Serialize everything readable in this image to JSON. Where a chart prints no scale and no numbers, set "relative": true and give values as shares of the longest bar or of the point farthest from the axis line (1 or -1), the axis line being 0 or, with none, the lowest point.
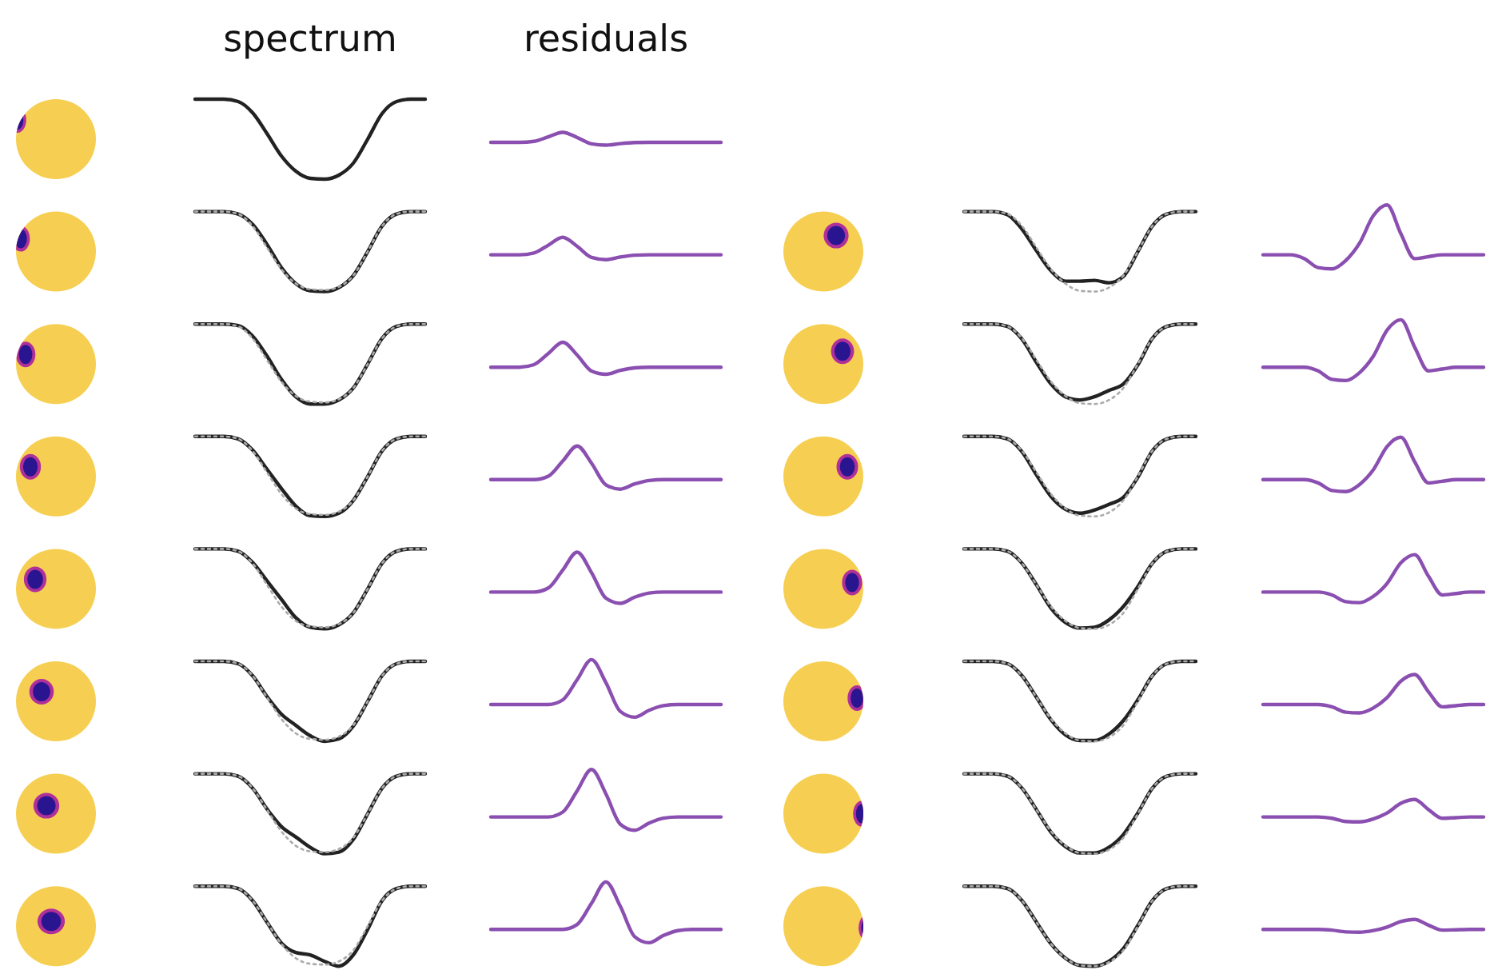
{
  "chart_data": [
    {
      "type": "line",
      "relative": true,
      "title": "spectrum",
      "categories": [
        null,
        null,
        null,
        null,
        null,
        null,
        null,
        null,
        null,
        null,
        null,
        null,
        null,
        null,
        null,
        null,
        null
      ],
      "series": [
        {
          "color": "#222222",
          "values": [
            1,
            1,
            1,
            0.97,
            0.83,
            0.57,
            0.29,
            0.1,
            0.01,
            0,
            0.05,
            0.2,
            0.5,
            0.82,
            0.97,
            1,
            1
          ]
        }
      ]
    },
    {
      "type": "line",
      "relative": true,
      "title": "residuals",
      "categories": [
        null,
        null,
        null,
        null,
        null,
        null,
        null,
        null,
        null,
        null,
        null,
        null,
        null,
        null,
        null,
        null,
        null
      ],
      "series": [
        {
          "color": "#8a4fb0",
          "values": [
            0.22,
            0.22,
            0.22,
            0.3,
            0.65,
            1,
            0.6,
            0.1,
            0,
            0.12,
            0.2,
            0.22,
            0.22,
            0.22,
            0.22,
            0.22,
            0.22
          ]
        }
      ]
    },
    {
      "type": "line",
      "relative": true,
      "categories": [
        null,
        null,
        null,
        null,
        null,
        null,
        null,
        null,
        null,
        null,
        null,
        null,
        null,
        null,
        null,
        null,
        null
      ],
      "series": [
        {
          "color": "#222222",
          "values": [
            1,
            1,
            1,
            0.97,
            0.84,
            0.59,
            0.3,
            0.1,
            0.01,
            0,
            0.05,
            0.2,
            0.5,
            0.82,
            0.97,
            1,
            1
          ]
        },
        {
          "color": "#aaaaaa",
          "line_style": "dotted",
          "values": [
            1,
            1,
            1,
            0.97,
            0.82,
            0.55,
            0.28,
            0.1,
            0.03,
            0.02,
            0.06,
            0.2,
            0.5,
            0.82,
            0.97,
            1,
            1
          ]
        }
      ]
    },
    {
      "type": "line",
      "relative": true,
      "categories": [
        null,
        null,
        null,
        null,
        null,
        null,
        null,
        null,
        null,
        null,
        null,
        null,
        null,
        null,
        null,
        null,
        null
      ],
      "series": [
        {
          "color": "#8a4fb0",
          "values": [
            0.22,
            0.22,
            0.22,
            0.3,
            0.65,
            1,
            0.6,
            0.1,
            0,
            0.12,
            0.2,
            0.22,
            0.22,
            0.22,
            0.22,
            0.22,
            0.22
          ]
        }
      ]
    },
    {
      "type": "line",
      "relative": true,
      "categories": [
        null,
        null,
        null,
        null,
        null,
        null,
        null,
        null,
        null,
        null,
        null,
        null,
        null,
        null,
        null,
        null,
        null
      ],
      "series": [
        {
          "color": "#222222",
          "values": [
            1,
            1,
            1,
            0.96,
            0.78,
            0.51,
            0.26,
            0.13,
            0.13,
            0.14,
            0.11,
            0.19,
            0.5,
            0.82,
            0.97,
            1,
            1
          ]
        },
        {
          "color": "#aaaaaa",
          "line_style": "dotted",
          "values": [
            1,
            1,
            1,
            0.97,
            0.82,
            0.55,
            0.28,
            0.1,
            0.01,
            0,
            0.05,
            0.2,
            0.5,
            0.82,
            0.97,
            1,
            1
          ]
        }
      ]
    },
    {
      "type": "line",
      "relative": true,
      "categories": [
        null,
        null,
        null,
        null,
        null,
        null,
        null,
        null,
        null,
        null,
        null,
        null,
        null,
        null,
        null,
        null,
        null
      ],
      "series": [
        {
          "color": "#8a4fb0",
          "values": [
            0.22,
            0.22,
            0.22,
            0.16,
            0.02,
            0,
            0.13,
            0.4,
            0.83,
            1,
            0.55,
            0.16,
            0.19,
            0.22,
            0.22,
            0.22,
            0.22
          ]
        }
      ]
    },
    {
      "type": "line",
      "relative": true,
      "categories": [
        null,
        null,
        null,
        null,
        null,
        null,
        null,
        null,
        null,
        null,
        null,
        null,
        null,
        null,
        null,
        null,
        null
      ],
      "series": [
        {
          "color": "#222222",
          "values": [
            1,
            1,
            1,
            0.98,
            0.85,
            0.6,
            0.31,
            0.09,
            0,
            0,
            0.05,
            0.2,
            0.5,
            0.82,
            0.97,
            1,
            1
          ]
        },
        {
          "color": "#aaaaaa",
          "line_style": "dotted",
          "values": [
            1,
            1,
            1,
            0.97,
            0.82,
            0.55,
            0.28,
            0.1,
            0.03,
            0.02,
            0.06,
            0.2,
            0.5,
            0.82,
            0.97,
            1,
            1
          ]
        }
      ]
    },
    {
      "type": "line",
      "relative": true,
      "categories": [
        null,
        null,
        null,
        null,
        null,
        null,
        null,
        null,
        null,
        null,
        null,
        null,
        null,
        null,
        null,
        null,
        null
      ],
      "series": [
        {
          "color": "#8a4fb0",
          "values": [
            0.22,
            0.22,
            0.22,
            0.3,
            0.65,
            1,
            0.6,
            0.1,
            0,
            0.12,
            0.2,
            0.22,
            0.22,
            0.22,
            0.22,
            0.22,
            0.22
          ]
        }
      ]
    },
    {
      "type": "line",
      "relative": true,
      "categories": [
        null,
        null,
        null,
        null,
        null,
        null,
        null,
        null,
        null,
        null,
        null,
        null,
        null,
        null,
        null,
        null,
        null
      ],
      "series": [
        {
          "color": "#222222",
          "values": [
            1,
            1,
            1,
            0.97,
            0.81,
            0.52,
            0.25,
            0.09,
            0.05,
            0.09,
            0.17,
            0.25,
            0.49,
            0.82,
            0.97,
            1,
            1
          ]
        },
        {
          "color": "#aaaaaa",
          "line_style": "dotted",
          "values": [
            1,
            1,
            1,
            0.97,
            0.82,
            0.55,
            0.28,
            0.1,
            0.01,
            0,
            0.05,
            0.2,
            0.5,
            0.82,
            0.97,
            1,
            1
          ]
        }
      ]
    },
    {
      "type": "line",
      "relative": true,
      "categories": [
        null,
        null,
        null,
        null,
        null,
        null,
        null,
        null,
        null,
        null,
        null,
        null,
        null,
        null,
        null,
        null,
        null
      ],
      "series": [
        {
          "color": "#8a4fb0",
          "values": [
            0.22,
            0.22,
            0.22,
            0.22,
            0.16,
            0.02,
            0,
            0.13,
            0.4,
            0.83,
            1,
            0.55,
            0.16,
            0.19,
            0.22,
            0.22,
            0.22
          ]
        }
      ]
    },
    {
      "type": "line",
      "relative": true,
      "categories": [
        null,
        null,
        null,
        null,
        null,
        null,
        null,
        null,
        null,
        null,
        null,
        null,
        null,
        null,
        null,
        null,
        null
      ],
      "series": [
        {
          "color": "#222222",
          "values": [
            1,
            1,
            1,
            0.97,
            0.83,
            0.59,
            0.35,
            0.13,
            0.01,
            0,
            0.04,
            0.2,
            0.5,
            0.82,
            0.97,
            1,
            1
          ]
        },
        {
          "color": "#aaaaaa",
          "line_style": "dotted",
          "values": [
            1,
            1,
            1,
            0.97,
            0.82,
            0.55,
            0.28,
            0.1,
            0.03,
            0.02,
            0.06,
            0.2,
            0.5,
            0.82,
            0.97,
            1,
            1
          ]
        }
      ]
    },
    {
      "type": "line",
      "relative": true,
      "categories": [
        null,
        null,
        null,
        null,
        null,
        null,
        null,
        null,
        null,
        null,
        null,
        null,
        null,
        null,
        null,
        null,
        null
      ],
      "series": [
        {
          "color": "#8a4fb0",
          "values": [
            0.22,
            0.22,
            0.22,
            0.22,
            0.3,
            0.65,
            1,
            0.6,
            0.1,
            0,
            0.12,
            0.2,
            0.22,
            0.22,
            0.22,
            0.22,
            0.22
          ]
        }
      ]
    },
    {
      "type": "line",
      "relative": true,
      "categories": [
        null,
        null,
        null,
        null,
        null,
        null,
        null,
        null,
        null,
        null,
        null,
        null,
        null,
        null,
        null,
        null,
        null
      ],
      "series": [
        {
          "color": "#222222",
          "values": [
            1,
            1,
            1,
            0.97,
            0.81,
            0.52,
            0.25,
            0.09,
            0.04,
            0.08,
            0.15,
            0.24,
            0.49,
            0.82,
            0.97,
            1,
            1
          ]
        },
        {
          "color": "#aaaaaa",
          "line_style": "dotted",
          "values": [
            1,
            1,
            1,
            0.97,
            0.82,
            0.55,
            0.28,
            0.1,
            0.01,
            0,
            0.05,
            0.2,
            0.5,
            0.82,
            0.97,
            1,
            1
          ]
        }
      ]
    },
    {
      "type": "line",
      "relative": true,
      "categories": [
        null,
        null,
        null,
        null,
        null,
        null,
        null,
        null,
        null,
        null,
        null,
        null,
        null,
        null,
        null,
        null,
        null
      ],
      "series": [
        {
          "color": "#8a4fb0",
          "values": [
            0.22,
            0.22,
            0.22,
            0.22,
            0.16,
            0.02,
            0,
            0.13,
            0.4,
            0.83,
            1,
            0.55,
            0.16,
            0.19,
            0.22,
            0.22,
            0.22
          ]
        }
      ]
    },
    {
      "type": "line",
      "relative": true,
      "categories": [
        null,
        null,
        null,
        null,
        null,
        null,
        null,
        null,
        null,
        null,
        null,
        null,
        null,
        null,
        null,
        null,
        null
      ],
      "series": [
        {
          "color": "#222222",
          "values": [
            1,
            1,
            1,
            0.97,
            0.83,
            0.6,
            0.37,
            0.14,
            0.02,
            0,
            0.05,
            0.2,
            0.5,
            0.82,
            0.97,
            1,
            1
          ]
        },
        {
          "color": "#aaaaaa",
          "line_style": "dotted",
          "values": [
            1,
            1,
            1,
            0.97,
            0.82,
            0.55,
            0.28,
            0.1,
            0.03,
            0.02,
            0.06,
            0.2,
            0.5,
            0.82,
            0.97,
            1,
            1
          ]
        }
      ]
    },
    {
      "type": "line",
      "relative": true,
      "categories": [
        null,
        null,
        null,
        null,
        null,
        null,
        null,
        null,
        null,
        null,
        null,
        null,
        null,
        null,
        null,
        null,
        null
      ],
      "series": [
        {
          "color": "#8a4fb0",
          "values": [
            0.22,
            0.22,
            0.22,
            0.22,
            0.3,
            0.65,
            1,
            0.6,
            0.1,
            0,
            0.12,
            0.2,
            0.22,
            0.22,
            0.22,
            0.22,
            0.22
          ]
        }
      ]
    },
    {
      "type": "line",
      "relative": true,
      "categories": [
        null,
        null,
        null,
        null,
        null,
        null,
        null,
        null,
        null,
        null,
        null,
        null,
        null,
        null,
        null,
        null,
        null
      ],
      "series": [
        {
          "color": "#222222",
          "values": [
            1,
            1,
            1,
            0.97,
            0.82,
            0.55,
            0.26,
            0.08,
            0.01,
            0.02,
            0.11,
            0.28,
            0.53,
            0.82,
            0.97,
            1,
            1
          ]
        },
        {
          "color": "#aaaaaa",
          "line_style": "dotted",
          "values": [
            1,
            1,
            1,
            0.97,
            0.82,
            0.55,
            0.28,
            0.1,
            0.01,
            0,
            0.05,
            0.2,
            0.5,
            0.82,
            0.97,
            1,
            1
          ]
        }
      ]
    },
    {
      "type": "line",
      "relative": true,
      "categories": [
        null,
        null,
        null,
        null,
        null,
        null,
        null,
        null,
        null,
        null,
        null,
        null,
        null,
        null,
        null,
        null,
        null
      ],
      "series": [
        {
          "color": "#8a4fb0",
          "values": [
            0.22,
            0.22,
            0.22,
            0.22,
            0.22,
            0.16,
            0.02,
            0,
            0.13,
            0.4,
            0.83,
            1,
            0.55,
            0.16,
            0.19,
            0.22,
            0.22
          ]
        }
      ]
    },
    {
      "type": "line",
      "relative": true,
      "categories": [
        null,
        null,
        null,
        null,
        null,
        null,
        null,
        null,
        null,
        null,
        null,
        null,
        null,
        null,
        null,
        null,
        null
      ],
      "series": [
        {
          "color": "#222222",
          "values": [
            1,
            1,
            1,
            0.97,
            0.82,
            0.56,
            0.34,
            0.2,
            0.07,
            0,
            0.03,
            0.19,
            0.5,
            0.82,
            0.97,
            1,
            1
          ]
        },
        {
          "color": "#aaaaaa",
          "line_style": "dotted",
          "values": [
            1,
            1,
            1,
            0.97,
            0.82,
            0.55,
            0.28,
            0.1,
            0.03,
            0.02,
            0.06,
            0.2,
            0.5,
            0.82,
            0.97,
            1,
            1
          ]
        }
      ]
    },
    {
      "type": "line",
      "relative": true,
      "categories": [
        null,
        null,
        null,
        null,
        null,
        null,
        null,
        null,
        null,
        null,
        null,
        null,
        null,
        null,
        null,
        null,
        null
      ],
      "series": [
        {
          "color": "#8a4fb0",
          "values": [
            0.22,
            0.22,
            0.22,
            0.22,
            0.22,
            0.3,
            0.65,
            1,
            0.6,
            0.1,
            0,
            0.12,
            0.2,
            0.22,
            0.22,
            0.22,
            0.22
          ]
        }
      ]
    },
    {
      "type": "line",
      "relative": true,
      "categories": [
        null,
        null,
        null,
        null,
        null,
        null,
        null,
        null,
        null,
        null,
        null,
        null,
        null,
        null,
        null,
        null,
        null
      ],
      "series": [
        {
          "color": "#222222",
          "values": [
            1,
            1,
            1,
            0.97,
            0.82,
            0.55,
            0.27,
            0.08,
            0.01,
            0.01,
            0.09,
            0.26,
            0.52,
            0.82,
            0.97,
            1,
            1
          ]
        },
        {
          "color": "#aaaaaa",
          "line_style": "dotted",
          "values": [
            1,
            1,
            1,
            0.97,
            0.82,
            0.55,
            0.28,
            0.1,
            0.01,
            0,
            0.05,
            0.2,
            0.5,
            0.82,
            0.97,
            1,
            1
          ]
        }
      ]
    },
    {
      "type": "line",
      "relative": true,
      "categories": [
        null,
        null,
        null,
        null,
        null,
        null,
        null,
        null,
        null,
        null,
        null,
        null,
        null,
        null,
        null,
        null,
        null
      ],
      "series": [
        {
          "color": "#8a4fb0",
          "values": [
            0.22,
            0.22,
            0.22,
            0.22,
            0.22,
            0.16,
            0.02,
            0,
            0.13,
            0.4,
            0.83,
            1,
            0.55,
            0.16,
            0.19,
            0.22,
            0.22
          ]
        }
      ]
    },
    {
      "type": "line",
      "relative": true,
      "categories": [
        null,
        null,
        null,
        null,
        null,
        null,
        null,
        null,
        null,
        null,
        null,
        null,
        null,
        null,
        null,
        null,
        null
      ],
      "series": [
        {
          "color": "#222222",
          "values": [
            1,
            1,
            1,
            0.97,
            0.82,
            0.56,
            0.34,
            0.21,
            0.08,
            0,
            0.02,
            0.18,
            0.5,
            0.82,
            0.97,
            1,
            1
          ]
        },
        {
          "color": "#aaaaaa",
          "line_style": "dotted",
          "values": [
            1,
            1,
            1,
            0.97,
            0.82,
            0.55,
            0.28,
            0.1,
            0.03,
            0.02,
            0.06,
            0.2,
            0.5,
            0.82,
            0.97,
            1,
            1
          ]
        }
      ]
    },
    {
      "type": "line",
      "relative": true,
      "categories": [
        null,
        null,
        null,
        null,
        null,
        null,
        null,
        null,
        null,
        null,
        null,
        null,
        null,
        null,
        null,
        null,
        null
      ],
      "series": [
        {
          "color": "#8a4fb0",
          "values": [
            0.22,
            0.22,
            0.22,
            0.22,
            0.22,
            0.3,
            0.65,
            1,
            0.6,
            0.1,
            0,
            0.12,
            0.2,
            0.22,
            0.22,
            0.22,
            0.22
          ]
        }
      ]
    },
    {
      "type": "line",
      "relative": true,
      "categories": [
        null,
        null,
        null,
        null,
        null,
        null,
        null,
        null,
        null,
        null,
        null,
        null,
        null,
        null,
        null,
        null,
        null
      ],
      "series": [
        {
          "color": "#222222",
          "values": [
            1,
            1,
            1,
            0.97,
            0.82,
            0.55,
            0.27,
            0.09,
            0.01,
            0.01,
            0.08,
            0.24,
            0.51,
            0.82,
            0.97,
            1,
            1
          ]
        },
        {
          "color": "#aaaaaa",
          "line_style": "dotted",
          "values": [
            1,
            1,
            1,
            0.97,
            0.82,
            0.55,
            0.28,
            0.1,
            0.01,
            0,
            0.05,
            0.2,
            0.5,
            0.82,
            0.97,
            1,
            1
          ]
        }
      ]
    },
    {
      "type": "line",
      "relative": true,
      "categories": [
        null,
        null,
        null,
        null,
        null,
        null,
        null,
        null,
        null,
        null,
        null,
        null,
        null,
        null,
        null,
        null,
        null
      ],
      "series": [
        {
          "color": "#8a4fb0",
          "values": [
            0.22,
            0.22,
            0.22,
            0.22,
            0.22,
            0.16,
            0.02,
            0,
            0.13,
            0.4,
            0.83,
            1,
            0.55,
            0.16,
            0.19,
            0.22,
            0.22
          ]
        }
      ]
    },
    {
      "type": "line",
      "relative": true,
      "categories": [
        null,
        null,
        null,
        null,
        null,
        null,
        null,
        null,
        null,
        null,
        null,
        null,
        null,
        null,
        null,
        null,
        null
      ],
      "series": [
        {
          "color": "#222222",
          "values": [
            1,
            1,
            1,
            0.97,
            0.82,
            0.55,
            0.29,
            0.17,
            0.14,
            0.06,
            0,
            0.14,
            0.46,
            0.82,
            0.97,
            1,
            1
          ]
        },
        {
          "color": "#aaaaaa",
          "line_style": "dotted",
          "values": [
            1,
            1,
            1,
            0.97,
            0.82,
            0.55,
            0.28,
            0.1,
            0.03,
            0.02,
            0.06,
            0.2,
            0.5,
            0.82,
            0.97,
            1,
            1
          ]
        }
      ]
    },
    {
      "type": "line",
      "relative": true,
      "categories": [
        null,
        null,
        null,
        null,
        null,
        null,
        null,
        null,
        null,
        null,
        null,
        null,
        null,
        null,
        null,
        null,
        null
      ],
      "series": [
        {
          "color": "#8a4fb0",
          "values": [
            0.22,
            0.22,
            0.22,
            0.22,
            0.22,
            0.22,
            0.3,
            0.65,
            1,
            0.6,
            0.1,
            0,
            0.12,
            0.2,
            0.22,
            0.22,
            0.22
          ]
        }
      ]
    },
    {
      "type": "line",
      "relative": true,
      "categories": [
        null,
        null,
        null,
        null,
        null,
        null,
        null,
        null,
        null,
        null,
        null,
        null,
        null,
        null,
        null,
        null,
        null
      ],
      "series": [
        {
          "color": "#222222",
          "values": [
            1,
            1,
            1,
            0.97,
            0.82,
            0.55,
            0.28,
            0.1,
            0.01,
            0,
            0.06,
            0.22,
            0.51,
            0.82,
            0.97,
            1,
            1
          ]
        },
        {
          "color": "#aaaaaa",
          "line_style": "dotted",
          "values": [
            1,
            1,
            1,
            0.97,
            0.82,
            0.55,
            0.28,
            0.1,
            0.01,
            0,
            0.05,
            0.2,
            0.5,
            0.82,
            0.97,
            1,
            1
          ]
        }
      ]
    },
    {
      "type": "line",
      "relative": true,
      "categories": [
        null,
        null,
        null,
        null,
        null,
        null,
        null,
        null,
        null,
        null,
        null,
        null,
        null,
        null,
        null,
        null,
        null
      ],
      "series": [
        {
          "color": "#8a4fb0",
          "values": [
            0.22,
            0.22,
            0.22,
            0.22,
            0.22,
            0.16,
            0.02,
            0,
            0.13,
            0.4,
            0.83,
            1,
            0.55,
            0.16,
            0.19,
            0.22,
            0.22
          ]
        }
      ]
    }
  ]
}
